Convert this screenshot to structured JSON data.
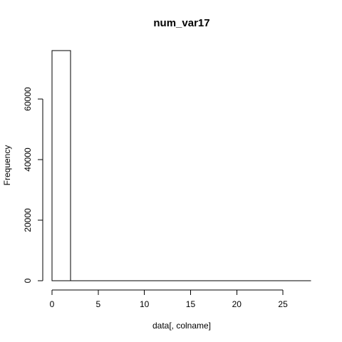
{
  "chart_data": {
    "type": "bar",
    "title": "num_var17",
    "xlabel": "data[, colname]",
    "ylabel": "Frequency",
    "xlim": [
      0,
      28
    ],
    "ylim": [
      0,
      76000
    ],
    "x_ticks": [
      0,
      5,
      10,
      15,
      20,
      25
    ],
    "y_ticks": [
      0,
      20000,
      40000,
      60000
    ],
    "bins": [
      {
        "x0": 0,
        "x1": 2,
        "count": 76000
      },
      {
        "x0": 2,
        "x1": 4,
        "count": 0
      },
      {
        "x0": 4,
        "x1": 6,
        "count": 0
      },
      {
        "x0": 6,
        "x1": 8,
        "count": 0
      },
      {
        "x0": 8,
        "x1": 10,
        "count": 0
      },
      {
        "x0": 10,
        "x1": 12,
        "count": 0
      },
      {
        "x0": 12,
        "x1": 14,
        "count": 0
      },
      {
        "x0": 14,
        "x1": 16,
        "count": 0
      },
      {
        "x0": 16,
        "x1": 18,
        "count": 0
      },
      {
        "x0": 18,
        "x1": 20,
        "count": 0
      },
      {
        "x0": 20,
        "x1": 22,
        "count": 0
      },
      {
        "x0": 22,
        "x1": 24,
        "count": 0
      },
      {
        "x0": 24,
        "x1": 26,
        "count": 0
      },
      {
        "x0": 26,
        "x1": 28,
        "count": 0
      }
    ],
    "grid": false,
    "legend": "none",
    "bar_fill": "#ffffff",
    "bar_stroke": "#000000"
  }
}
